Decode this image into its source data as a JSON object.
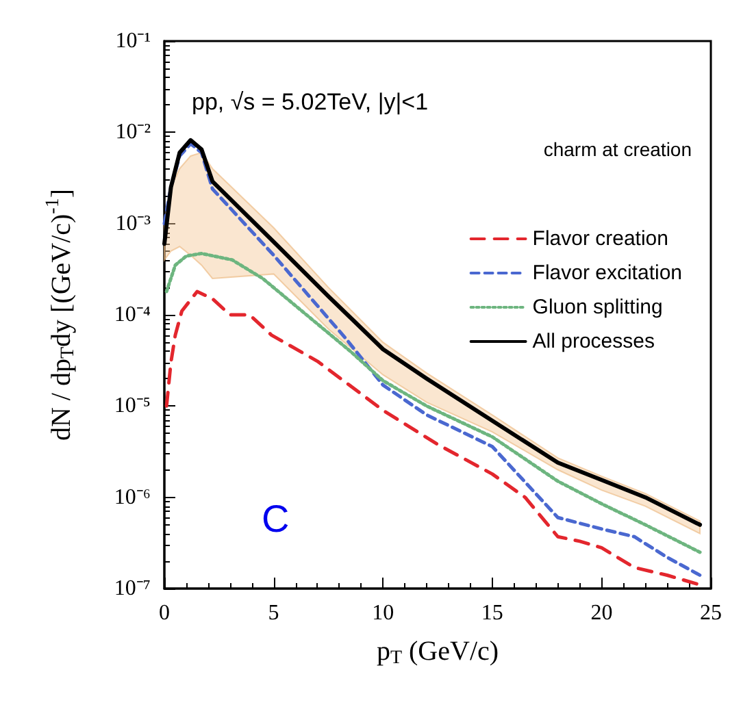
{
  "chart_data": {
    "type": "line",
    "xlabel": "p$_{T}$ (GeV/c)",
    "ylabel": "dN / dp$_{T}$dy [(GeV/c)$^{-1}$]",
    "annotations": [
      "pp, √s = 5.02TeV, |y|<1",
      "charm at creation",
      "C"
    ],
    "log": "y",
    "xlim": [
      0,
      25
    ],
    "xticks": [
      0,
      5,
      10,
      15,
      20,
      25
    ],
    "ylim": [
      1e-07,
      0.1
    ],
    "yticks": [
      {
        "value": 1e-07,
        "label": "10⁻⁷"
      },
      {
        "value": 1e-06,
        "label": "10⁻⁶"
      },
      {
        "value": 1e-05,
        "label": "10⁻⁵"
      },
      {
        "value": 0.0001,
        "label": "10⁻⁴"
      },
      {
        "value": 0.001,
        "label": "10⁻³"
      },
      {
        "value": 0.01,
        "label": "10⁻²"
      },
      {
        "value": 0.1,
        "label": "10⁻¹"
      }
    ],
    "grid": false,
    "legend": "top right",
    "marker": "none",
    "series": [
      {
        "name": "Flavor creation",
        "color": "#e3262d",
        "line_style": "dashed",
        "x": [
          0.1,
          0.3,
          0.5,
          0.8,
          1.5,
          2.2,
          3,
          3.9,
          4.9,
          7,
          10,
          12.5,
          15,
          16.5,
          18,
          19,
          20,
          21.5,
          23,
          24.5
        ],
        "values": [
          1e-05,
          3e-05,
          6e-05,
          0.00011,
          0.00018,
          0.00015,
          0.0001,
          0.0001,
          6e-05,
          3.1e-05,
          9e-06,
          3.8e-06,
          1.8e-06,
          1e-06,
          3.7e-07,
          3.3e-07,
          2.8e-07,
          1.7e-07,
          1.4e-07,
          1.1e-07
        ]
      },
      {
        "name": "Flavor excitation",
        "color": "#4a68d0",
        "line_style": "dashed",
        "x": [
          0,
          0.3,
          0.7,
          1.2,
          1.7,
          2.2,
          5,
          8.3,
          10,
          12,
          15,
          18,
          20,
          21.5,
          23,
          24.5
        ],
        "values": [
          0.001,
          0.0025,
          0.0055,
          0.0075,
          0.006,
          0.0024,
          0.00045,
          5.5e-05,
          1.7e-05,
          8e-06,
          3.6e-06,
          6e-07,
          4.5e-07,
          3.7e-07,
          2.2e-07,
          1.4e-07
        ]
      },
      {
        "name": "Gluon splitting",
        "color": "#6db57f",
        "line_style": "dotted",
        "x": [
          0.1,
          0.5,
          1,
          1.7,
          3.1,
          4.5,
          8.5,
          10,
          12,
          15,
          18,
          20,
          22,
          24.5
        ],
        "values": [
          0.00018,
          0.00035,
          0.00044,
          0.00047,
          0.0004,
          0.00025,
          4e-05,
          1.9e-05,
          1e-05,
          4.6e-06,
          1.5e-06,
          8.5e-07,
          5e-07,
          2.5e-07
        ]
      },
      {
        "name": "All processes",
        "color": "#000000",
        "line_style": "solid",
        "x": [
          0,
          0.3,
          0.7,
          1.2,
          1.7,
          2.2,
          5,
          7.5,
          10,
          12,
          15,
          18,
          20,
          22,
          24.5
        ],
        "values": [
          0.0006,
          0.0025,
          0.006,
          0.0082,
          0.0065,
          0.0029,
          0.00063,
          0.00016,
          4.2e-05,
          2e-05,
          6.9e-06,
          2.4e-06,
          1.55e-06,
          1e-06,
          5e-07
        ],
        "lower": [
          0.0004,
          0.0005,
          0.00056,
          0.00045,
          0.00035,
          0.00025,
          0.00028,
          7e-05,
          2.2e-05,
          1.1e-05,
          5.2e-06,
          2e-06,
          1.2e-06,
          8e-07,
          4e-07
        ],
        "upper": [
          0.001,
          0.0025,
          0.004,
          0.0055,
          0.006,
          0.004,
          0.0009,
          0.0002,
          5e-05,
          2.3e-05,
          8e-06,
          2.7e-06,
          1.7e-06,
          1.1e-06,
          5.5e-07
        ]
      }
    ]
  }
}
